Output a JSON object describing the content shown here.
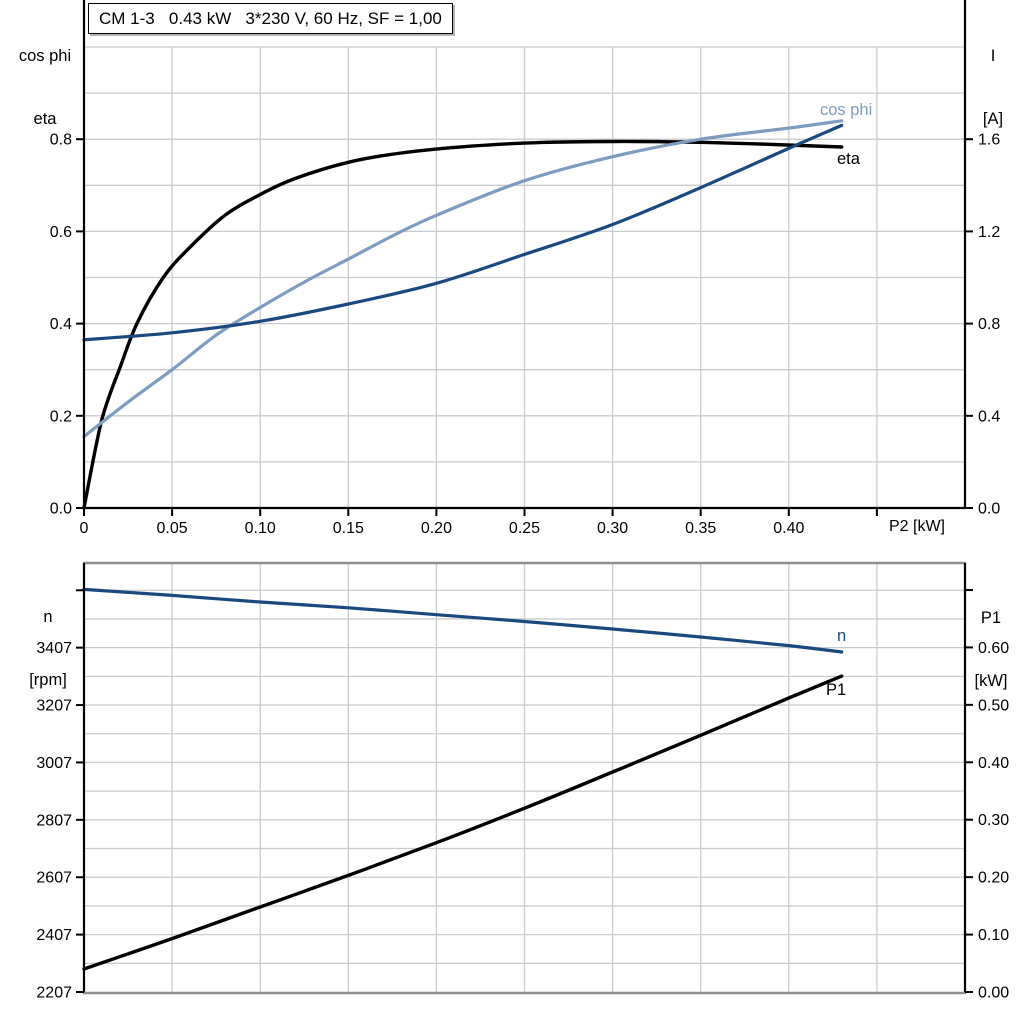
{
  "title": "CM 1-3   0.43 kW   3*230 V, 60 Hz, SF = 1,00",
  "colors": {
    "black": "#000000",
    "dark_blue": "#1a4980",
    "light_blue": "#7d9cc0",
    "grid": "#c9cccf",
    "frame": "#8c8f92",
    "text": "#000000"
  },
  "axis_headers": {
    "top_left": [
      "cos phi",
      "eta"
    ],
    "top_right": [
      "I",
      "[A]"
    ],
    "bottom_left": [
      "n",
      "[rpm]"
    ],
    "bottom_right": [
      "P1",
      "[kW]"
    ]
  },
  "curve_labels": {
    "cos_phi": "cos phi",
    "eta": "eta",
    "n": "n",
    "p1": "P1"
  },
  "chart_data": [
    {
      "type": "line",
      "name": "motor-electrical-curves",
      "x_title": "P2 [kW]",
      "x_axis": {
        "min": 0,
        "max": 0.5,
        "tick_values": [
          0,
          0.05,
          0.1,
          0.15,
          0.2,
          0.25,
          0.3,
          0.35,
          0.4,
          0.45
        ],
        "tick_labels": [
          "0",
          "0.05",
          "0.10",
          "0.15",
          "0.20",
          "0.25",
          "0.30",
          "0.35",
          "0.40",
          ""
        ],
        "grid_values": [
          0.05,
          0.1,
          0.15,
          0.2,
          0.25,
          0.3,
          0.35,
          0.4,
          0.45
        ]
      },
      "left_axis": {
        "min": 0,
        "max": 1.0,
        "tick_values": [
          0,
          0.2,
          0.4,
          0.6,
          0.8
        ],
        "tick_labels": [
          "0.0",
          "0.2",
          "0.4",
          "0.6",
          "0.8"
        ],
        "grid_values": [
          0.1,
          0.2,
          0.3,
          0.4,
          0.5,
          0.6,
          0.7,
          0.8,
          0.9,
          1.0
        ]
      },
      "right_axis": {
        "min": 0,
        "max": 2.0,
        "tick_values": [
          0,
          0.4,
          0.8,
          1.2,
          1.6
        ],
        "tick_labels": [
          "0.0",
          "0.4",
          "0.8",
          "1.2",
          "1.6"
        ]
      },
      "series": [
        {
          "name": "eta",
          "axis": "left",
          "color": "black",
          "width": 3.4,
          "points": [
            [
              0,
              0
            ],
            [
              0.005,
              0.1
            ],
            [
              0.01,
              0.19
            ],
            [
              0.015,
              0.25
            ],
            [
              0.02,
              0.3
            ],
            [
              0.03,
              0.4
            ],
            [
              0.045,
              0.5
            ],
            [
              0.06,
              0.565
            ],
            [
              0.08,
              0.635
            ],
            [
              0.1,
              0.68
            ],
            [
              0.12,
              0.715
            ],
            [
              0.15,
              0.75
            ],
            [
              0.18,
              0.77
            ],
            [
              0.22,
              0.785
            ],
            [
              0.26,
              0.793
            ],
            [
              0.3,
              0.795
            ],
            [
              0.34,
              0.794
            ],
            [
              0.38,
              0.79
            ],
            [
              0.43,
              0.783
            ]
          ]
        },
        {
          "name": "cos phi",
          "axis": "left",
          "color": "light_blue",
          "width": 3.2,
          "points": [
            [
              0,
              0.155
            ],
            [
              0.025,
              0.23
            ],
            [
              0.05,
              0.3
            ],
            [
              0.075,
              0.375
            ],
            [
              0.1,
              0.435
            ],
            [
              0.125,
              0.49
            ],
            [
              0.15,
              0.54
            ],
            [
              0.175,
              0.59
            ],
            [
              0.2,
              0.635
            ],
            [
              0.25,
              0.71
            ],
            [
              0.3,
              0.762
            ],
            [
              0.35,
              0.8
            ],
            [
              0.4,
              0.824
            ],
            [
              0.43,
              0.84
            ]
          ]
        },
        {
          "name": "I",
          "axis": "right",
          "color": "dark_blue",
          "width": 3.2,
          "points": [
            [
              0,
              0.73
            ],
            [
              0.05,
              0.76
            ],
            [
              0.1,
              0.81
            ],
            [
              0.15,
              0.885
            ],
            [
              0.2,
              0.975
            ],
            [
              0.25,
              1.1
            ],
            [
              0.3,
              1.23
            ],
            [
              0.35,
              1.39
            ],
            [
              0.4,
              1.56
            ],
            [
              0.43,
              1.66
            ]
          ]
        }
      ]
    },
    {
      "type": "line",
      "name": "motor-speed-power-curves",
      "x_title": "",
      "x_axis": {
        "min": 0,
        "max": 0.5,
        "tick_values": [],
        "tick_labels": [],
        "grid_values": [
          0.05,
          0.1,
          0.15,
          0.2,
          0.25,
          0.3,
          0.35,
          0.4,
          0.45
        ]
      },
      "left_axis": {
        "min": 2207,
        "max": 3702,
        "tick_values": [
          2207,
          2407,
          2607,
          2807,
          3007,
          3207,
          3407,
          3607
        ],
        "tick_labels": [
          "2207",
          "2407",
          "2607",
          "2807",
          "3007",
          "3207",
          "3407",
          ""
        ],
        "grid_values": [
          2307,
          2407,
          2507,
          2607,
          2707,
          2807,
          2907,
          3007,
          3107,
          3207,
          3307,
          3407,
          3507,
          3607
        ]
      },
      "right_axis": {
        "min": 0,
        "max": 0.747,
        "tick_values": [
          0,
          0.1,
          0.2,
          0.3,
          0.4,
          0.5,
          0.6,
          0.7
        ],
        "tick_labels": [
          "0.00",
          "0.10",
          "0.20",
          "0.30",
          "0.40",
          "0.50",
          "0.60",
          ""
        ]
      },
      "series": [
        {
          "name": "n",
          "axis": "left",
          "color": "dark_blue",
          "width": 3.2,
          "points": [
            [
              0,
              3610
            ],
            [
              0.05,
              3589
            ],
            [
              0.1,
              3566
            ],
            [
              0.15,
              3546
            ],
            [
              0.2,
              3522
            ],
            [
              0.25,
              3498
            ],
            [
              0.3,
              3472
            ],
            [
              0.35,
              3444
            ],
            [
              0.4,
              3414
            ],
            [
              0.43,
              3392
            ]
          ]
        },
        {
          "name": "P1",
          "axis": "right",
          "color": "black",
          "width": 3.4,
          "points": [
            [
              0,
              0.04
            ],
            [
              0.05,
              0.093
            ],
            [
              0.1,
              0.148
            ],
            [
              0.15,
              0.203
            ],
            [
              0.2,
              0.26
            ],
            [
              0.25,
              0.32
            ],
            [
              0.3,
              0.383
            ],
            [
              0.35,
              0.447
            ],
            [
              0.4,
              0.512
            ],
            [
              0.43,
              0.55
            ]
          ]
        }
      ]
    }
  ]
}
